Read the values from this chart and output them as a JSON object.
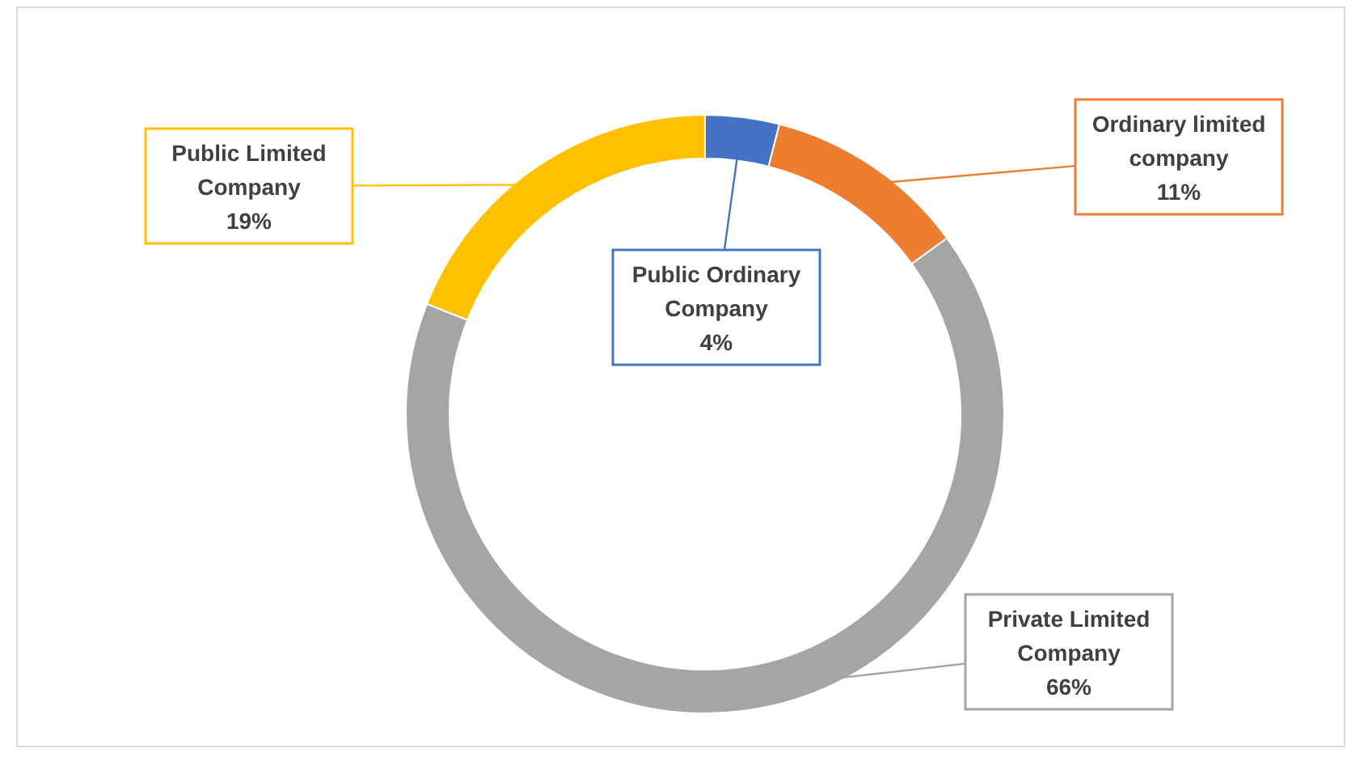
{
  "chart_data": {
    "type": "donut",
    "categories": [
      "Public Ordinary Company",
      "Ordinary limited company",
      "Private Limited Company",
      "Public Limited Company"
    ],
    "values": [
      4,
      11,
      66,
      19
    ],
    "colors": [
      "#4472c4",
      "#ed7d31",
      "#a5a5a5",
      "#ffc000"
    ],
    "value_labels": [
      "4%",
      "11%",
      "66%",
      "19%"
    ]
  }
}
